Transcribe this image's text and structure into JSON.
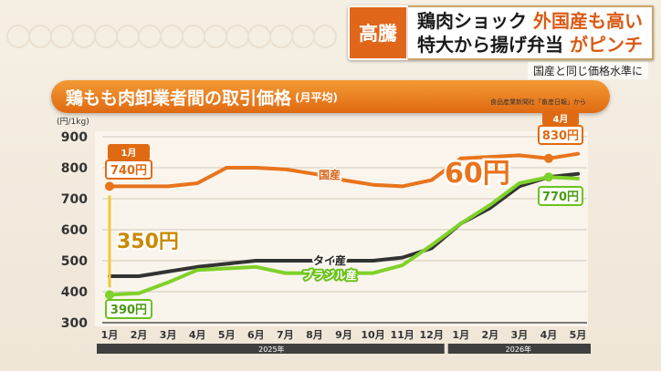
{
  "headline": {
    "badge": "高騰",
    "line1_a": "鶏肉ショック",
    "line1_b": "外国産も高い",
    "line2_a": "特大から揚げ弁当",
    "line2_b": "がピンチ",
    "subtitle": "国産と同じ価格水準に"
  },
  "chart_title": "鶏もも肉卸業者間の取引価格",
  "chart_title_note": "(月平均)",
  "source": "食品産業新聞社「畜産日報」から",
  "colors": {
    "kokusan": "#e8741c",
    "tai": "#333333",
    "brazil": "#7fd12a",
    "accent": "#e06a12",
    "bracket": "#f2c93a"
  },
  "chart_data": {
    "type": "line",
    "ylabel": "(円/1kg)",
    "ylim": [
      300,
      900
    ],
    "yticks": [
      "300",
      "400",
      "500",
      "600",
      "700",
      "800",
      "900"
    ],
    "categories": [
      "1月",
      "2月",
      "3月",
      "4月",
      "5月",
      "6月",
      "7月",
      "8月",
      "9月",
      "10月",
      "11月",
      "12月",
      "1月",
      "2月",
      "3月",
      "4月",
      "5月"
    ],
    "year_labels": [
      "2025年",
      "2026年"
    ],
    "series": [
      {
        "name": "国産",
        "values": [
          740,
          740,
          740,
          750,
          800,
          800,
          795,
          780,
          760,
          745,
          740,
          760,
          830,
          835,
          840,
          830,
          845
        ]
      },
      {
        "name": "タイ産",
        "values": [
          450,
          450,
          465,
          480,
          490,
          500,
          500,
          500,
          500,
          500,
          510,
          540,
          620,
          670,
          740,
          770,
          780
        ]
      },
      {
        "name": "ブラジル産",
        "values": [
          390,
          395,
          430,
          470,
          475,
          480,
          460,
          460,
          460,
          460,
          485,
          550,
          620,
          680,
          750,
          770,
          765
        ]
      }
    ],
    "annotations": {
      "start_month": "1月",
      "start_kokusan": "740円",
      "start_brazil": "390円",
      "gap_start": "350円",
      "gap_end": "60円",
      "end_month": "4月",
      "end_kokusan": "830円",
      "end_brazil": "770円"
    }
  }
}
